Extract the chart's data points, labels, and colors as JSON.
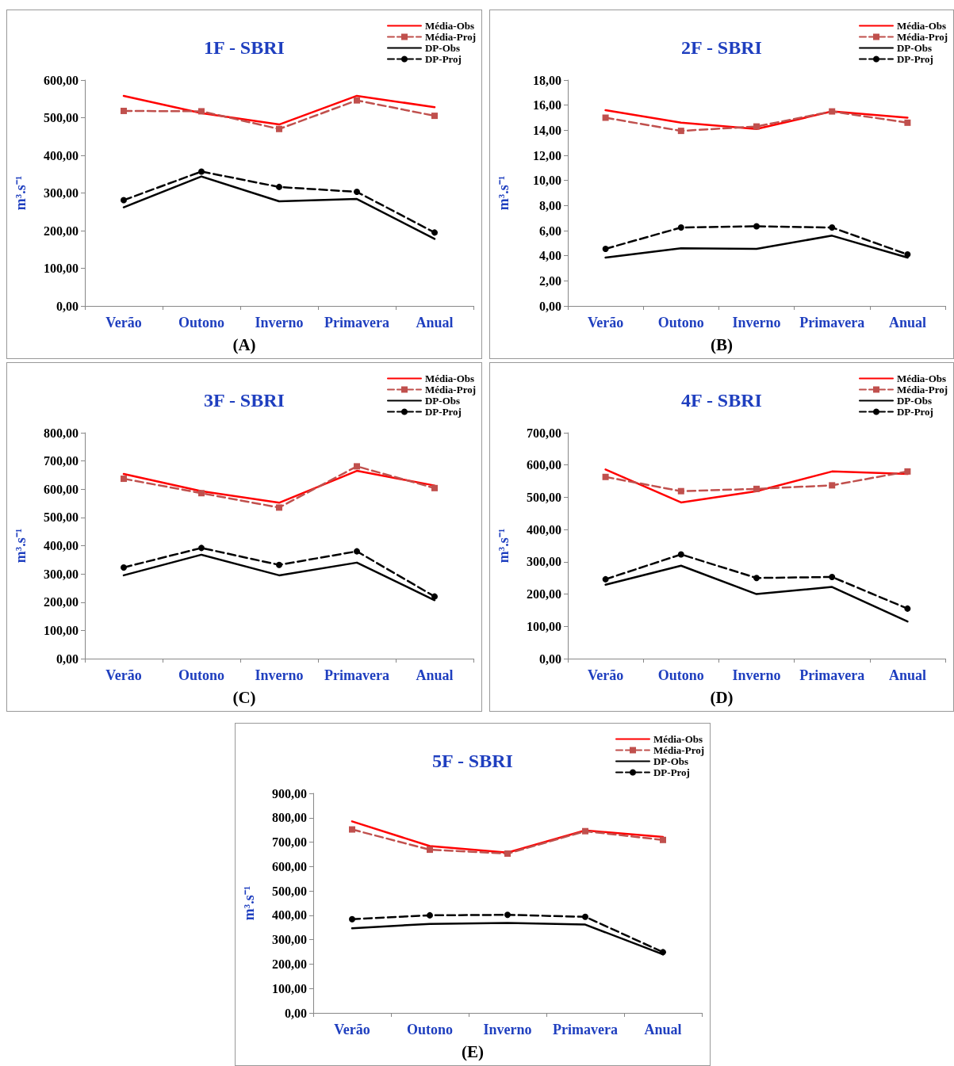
{
  "chart_data": [
    {
      "type": "line",
      "title": "1F - SBRI",
      "ylabel": "m³.s⁻¹",
      "annotations": [
        "(A)"
      ],
      "categories": [
        "Verão",
        "Outono",
        "Inverno",
        "Primavera",
        "Anual"
      ],
      "ylim": [
        0,
        600
      ],
      "yticks": [
        {
          "value": 0,
          "label": "0,00"
        },
        {
          "value": 100,
          "label": "100,00"
        },
        {
          "value": 200,
          "label": "200,00"
        },
        {
          "value": 300,
          "label": "300,00"
        },
        {
          "value": 400,
          "label": "400,00"
        },
        {
          "value": 500,
          "label": "500,00"
        },
        {
          "value": 600,
          "label": "600,00"
        }
      ],
      "grid": false,
      "legend": "top right",
      "series": [
        {
          "name": "Média-Obs",
          "color": "#ff0000",
          "marker": "none",
          "line_style": "solid",
          "values": [
            558,
            512,
            482,
            558,
            528
          ]
        },
        {
          "name": "Média-Proj",
          "color": "#c0504d",
          "marker": "square",
          "line_style": "dashed",
          "values": [
            518,
            517,
            470,
            546,
            505
          ]
        },
        {
          "name": "DP-Obs",
          "color": "#000000",
          "marker": "none",
          "line_style": "solid",
          "values": [
            262,
            344,
            278,
            284,
            178
          ]
        },
        {
          "name": "DP-Proj",
          "color": "#000000",
          "marker": "circle",
          "line_style": "dashed",
          "values": [
            281,
            357,
            316,
            303,
            195
          ]
        }
      ]
    },
    {
      "type": "line",
      "title": "2F - SBRI",
      "ylabel": "m³.s⁻¹",
      "annotations": [
        "(B)"
      ],
      "categories": [
        "Verão",
        "Outono",
        "Inverno",
        "Primavera",
        "Anual"
      ],
      "ylim": [
        0,
        18
      ],
      "yticks": [
        {
          "value": 0,
          "label": "0,00"
        },
        {
          "value": 2,
          "label": "2,00"
        },
        {
          "value": 4,
          "label": "4,00"
        },
        {
          "value": 6,
          "label": "6,00"
        },
        {
          "value": 8,
          "label": "8,00"
        },
        {
          "value": 10,
          "label": "10,00"
        },
        {
          "value": 12,
          "label": "12,00"
        },
        {
          "value": 14,
          "label": "14,00"
        },
        {
          "value": 16,
          "label": "16,00"
        },
        {
          "value": 18,
          "label": "18,00"
        }
      ],
      "grid": false,
      "legend": "top right",
      "series": [
        {
          "name": "Média-Obs",
          "color": "#ff0000",
          "marker": "none",
          "line_style": "solid",
          "values": [
            15.6,
            14.6,
            14.1,
            15.5,
            15.0
          ]
        },
        {
          "name": "Média-Proj",
          "color": "#c0504d",
          "marker": "square",
          "line_style": "dashed",
          "values": [
            15.0,
            13.95,
            14.3,
            15.5,
            14.6
          ]
        },
        {
          "name": "DP-Obs",
          "color": "#000000",
          "marker": "none",
          "line_style": "solid",
          "values": [
            3.85,
            4.6,
            4.55,
            5.6,
            3.85
          ]
        },
        {
          "name": "DP-Proj",
          "color": "#000000",
          "marker": "circle",
          "line_style": "dashed",
          "values": [
            4.55,
            6.25,
            6.35,
            6.25,
            4.1
          ]
        }
      ]
    },
    {
      "type": "line",
      "title": "3F - SBRI",
      "ylabel": "m³.s⁻¹",
      "annotations": [
        "(C)"
      ],
      "categories": [
        "Verão",
        "Outono",
        "Inverno",
        "Primavera",
        "Anual"
      ],
      "ylim": [
        0,
        800
      ],
      "yticks": [
        {
          "value": 0,
          "label": "0,00"
        },
        {
          "value": 100,
          "label": "100,00"
        },
        {
          "value": 200,
          "label": "200,00"
        },
        {
          "value": 300,
          "label": "300,00"
        },
        {
          "value": 400,
          "label": "400,00"
        },
        {
          "value": 500,
          "label": "500,00"
        },
        {
          "value": 600,
          "label": "600,00"
        },
        {
          "value": 700,
          "label": "700,00"
        },
        {
          "value": 800,
          "label": "800,00"
        }
      ],
      "grid": false,
      "legend": "top right",
      "series": [
        {
          "name": "Média-Obs",
          "color": "#ff0000",
          "marker": "none",
          "line_style": "solid",
          "values": [
            654,
            593,
            552,
            665,
            613
          ]
        },
        {
          "name": "Média-Proj",
          "color": "#c0504d",
          "marker": "square",
          "line_style": "dashed",
          "values": [
            637,
            586,
            535,
            681,
            604
          ]
        },
        {
          "name": "DP-Obs",
          "color": "#000000",
          "marker": "none",
          "line_style": "solid",
          "values": [
            295,
            368,
            295,
            340,
            207
          ]
        },
        {
          "name": "DP-Proj",
          "color": "#000000",
          "marker": "circle",
          "line_style": "dashed",
          "values": [
            323,
            392,
            332,
            380,
            220
          ]
        }
      ]
    },
    {
      "type": "line",
      "title": "4F - SBRI",
      "ylabel": "m³.s⁻¹",
      "annotations": [
        "(D)"
      ],
      "categories": [
        "Verão",
        "Outono",
        "Inverno",
        "Primavera",
        "Anual"
      ],
      "ylim": [
        0,
        700
      ],
      "yticks": [
        {
          "value": 0,
          "label": "0,00"
        },
        {
          "value": 100,
          "label": "100,00"
        },
        {
          "value": 200,
          "label": "200,00"
        },
        {
          "value": 300,
          "label": "300,00"
        },
        {
          "value": 400,
          "label": "400,00"
        },
        {
          "value": 500,
          "label": "500,00"
        },
        {
          "value": 600,
          "label": "600,00"
        },
        {
          "value": 700,
          "label": "700,00"
        }
      ],
      "grid": false,
      "legend": "top right",
      "series": [
        {
          "name": "Média-Obs",
          "color": "#ff0000",
          "marker": "none",
          "line_style": "solid",
          "values": [
            586,
            484,
            519,
            580,
            572
          ]
        },
        {
          "name": "Média-Proj",
          "color": "#c0504d",
          "marker": "square",
          "line_style": "dashed",
          "values": [
            563,
            519,
            526,
            537,
            580
          ]
        },
        {
          "name": "DP-Obs",
          "color": "#000000",
          "marker": "none",
          "line_style": "solid",
          "values": [
            229,
            288,
            200,
            222,
            115
          ]
        },
        {
          "name": "DP-Proj",
          "color": "#000000",
          "marker": "circle",
          "line_style": "dashed",
          "values": [
            246,
            323,
            250,
            253,
            155
          ]
        }
      ]
    },
    {
      "type": "line",
      "title": "5F - SBRI",
      "ylabel": "m³.s⁻¹",
      "annotations": [
        "(E)"
      ],
      "categories": [
        "Verão",
        "Outono",
        "Inverno",
        "Primavera",
        "Anual"
      ],
      "ylim": [
        0,
        900
      ],
      "yticks": [
        {
          "value": 0,
          "label": "0,00"
        },
        {
          "value": 100,
          "label": "100,00"
        },
        {
          "value": 200,
          "label": "200,00"
        },
        {
          "value": 300,
          "label": "300,00"
        },
        {
          "value": 400,
          "label": "400,00"
        },
        {
          "value": 500,
          "label": "500,00"
        },
        {
          "value": 600,
          "label": "600,00"
        },
        {
          "value": 700,
          "label": "700,00"
        },
        {
          "value": 800,
          "label": "800,00"
        },
        {
          "value": 900,
          "label": "900,00"
        }
      ],
      "grid": false,
      "legend": "top right",
      "series": [
        {
          "name": "Média-Obs",
          "color": "#ff0000",
          "marker": "none",
          "line_style": "solid",
          "values": [
            785,
            684,
            657,
            748,
            721
          ]
        },
        {
          "name": "Média-Proj",
          "color": "#c0504d",
          "marker": "square",
          "line_style": "dashed",
          "values": [
            752,
            669,
            653,
            745,
            709
          ]
        },
        {
          "name": "DP-Obs",
          "color": "#000000",
          "marker": "none",
          "line_style": "solid",
          "values": [
            347,
            365,
            369,
            362,
            240
          ]
        },
        {
          "name": "DP-Proj",
          "color": "#000000",
          "marker": "circle",
          "line_style": "dashed",
          "values": [
            384,
            400,
            402,
            394,
            249
          ]
        }
      ]
    }
  ]
}
